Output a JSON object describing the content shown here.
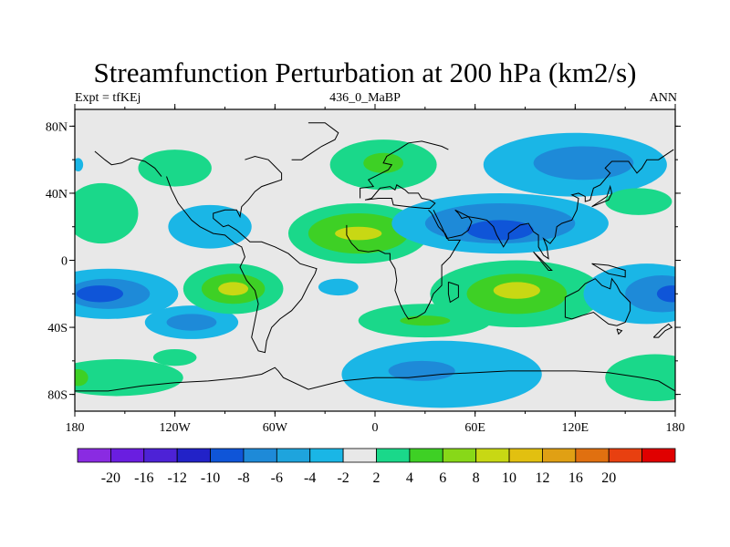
{
  "title": "Streamfunction Perturbation at 200 hPa (km2/s)",
  "subtitle_left": "Expt = tfKEj",
  "subtitle_center": "436_0_MaBP",
  "subtitle_right": "ANN",
  "map": {
    "lon_range": [
      -180,
      180
    ],
    "lat_range": [
      -90,
      90
    ],
    "y_ticks": [
      {
        "lat": 80,
        "label": "80N"
      },
      {
        "lat": 40,
        "label": "40N"
      },
      {
        "lat": 0,
        "label": "0"
      },
      {
        "lat": -40,
        "label": "40S"
      },
      {
        "lat": -80,
        "label": "80S"
      }
    ],
    "x_ticks": [
      {
        "lon": -180,
        "label": "180"
      },
      {
        "lon": -120,
        "label": "120W"
      },
      {
        "lon": -60,
        "label": "60W"
      },
      {
        "lon": 0,
        "label": "0"
      },
      {
        "lon": 60,
        "label": "60E"
      },
      {
        "lon": 120,
        "label": "120E"
      },
      {
        "lon": 180,
        "label": "180"
      }
    ],
    "background_color": "#e8e8e8",
    "fields": [
      {
        "lon": -120,
        "lat": 55,
        "rlon": 22,
        "rlat": 11,
        "level": 2
      },
      {
        "lon": 5,
        "lat": 57,
        "rlon": 32,
        "rlat": 15,
        "level": 2
      },
      {
        "lon": 5,
        "lat": 58,
        "rlon": 12,
        "rlat": 6,
        "level": 4
      },
      {
        "lon": 120,
        "lat": 57,
        "rlon": 55,
        "rlat": 19,
        "level": -2
      },
      {
        "lon": 125,
        "lat": 58,
        "rlon": 30,
        "rlat": 10,
        "level": -4
      },
      {
        "lon": 158,
        "lat": 35,
        "rlon": 20,
        "rlat": 8,
        "level": 2
      },
      {
        "lon": -99,
        "lat": 20,
        "rlon": 25,
        "rlat": 13,
        "level": -2
      },
      {
        "lon": -164,
        "lat": 28,
        "rlon": 22,
        "rlat": 18,
        "level": 2
      },
      {
        "lon": -178,
        "lat": 57,
        "rlon": 3,
        "rlat": 4,
        "level": -2
      },
      {
        "lon": -10,
        "lat": 16,
        "rlon": 42,
        "rlat": 18,
        "level": 2
      },
      {
        "lon": -10,
        "lat": 16,
        "rlon": 30,
        "rlat": 12,
        "level": 4
      },
      {
        "lon": -10,
        "lat": 16,
        "rlon": 14,
        "rlat": 4,
        "level": 6
      },
      {
        "lon": 75,
        "lat": 22,
        "rlon": 65,
        "rlat": 18,
        "level": -2
      },
      {
        "lon": 75,
        "lat": 22,
        "rlon": 45,
        "rlat": 12,
        "level": -4
      },
      {
        "lon": 75,
        "lat": 18,
        "rlon": 20,
        "rlat": 6,
        "level": -6
      },
      {
        "lon": -160,
        "lat": -20,
        "rlon": 42,
        "rlat": 15,
        "level": -2
      },
      {
        "lon": -160,
        "lat": -20,
        "rlon": 25,
        "rlat": 9,
        "level": -4
      },
      {
        "lon": -165,
        "lat": -20,
        "rlon": 14,
        "rlat": 5,
        "level": -6
      },
      {
        "lon": -110,
        "lat": -37,
        "rlon": 28,
        "rlat": 10,
        "level": -2
      },
      {
        "lon": -110,
        "lat": -37,
        "rlon": 15,
        "rlat": 5,
        "level": -4
      },
      {
        "lon": -85,
        "lat": -17,
        "rlon": 30,
        "rlat": 15,
        "level": 2
      },
      {
        "lon": -85,
        "lat": -17,
        "rlon": 19,
        "rlat": 9,
        "level": 4
      },
      {
        "lon": -85,
        "lat": -17,
        "rlon": 9,
        "rlat": 4,
        "level": 6
      },
      {
        "lon": -22,
        "lat": -16,
        "rlon": 12,
        "rlat": 5,
        "level": -2
      },
      {
        "lon": 85,
        "lat": -20,
        "rlon": 52,
        "rlat": 20,
        "level": 2
      },
      {
        "lon": 85,
        "lat": -20,
        "rlon": 30,
        "rlat": 12,
        "level": 4
      },
      {
        "lon": 85,
        "lat": -18,
        "rlon": 14,
        "rlat": 5,
        "level": 6
      },
      {
        "lon": 30,
        "lat": -36,
        "rlon": 40,
        "rlat": 10,
        "level": 2
      },
      {
        "lon": 30,
        "lat": -36,
        "rlon": 15,
        "rlat": 3,
        "level": 4
      },
      {
        "lon": 163,
        "lat": -20,
        "rlon": 38,
        "rlat": 18,
        "level": -2
      },
      {
        "lon": 172,
        "lat": -20,
        "rlon": 22,
        "rlat": 11,
        "level": -4
      },
      {
        "lon": 178,
        "lat": -20,
        "rlon": 9,
        "rlat": 5,
        "level": -6
      },
      {
        "lon": 40,
        "lat": -68,
        "rlon": 60,
        "rlat": 20,
        "level": -2
      },
      {
        "lon": 28,
        "lat": -66,
        "rlon": 20,
        "rlat": 6,
        "level": -4
      },
      {
        "lon": -155,
        "lat": -70,
        "rlon": 40,
        "rlat": 11,
        "level": 2
      },
      {
        "lon": -178,
        "lat": -70,
        "rlon": 6,
        "rlat": 5,
        "level": 4
      },
      {
        "lon": -120,
        "lat": -58,
        "rlon": 13,
        "rlat": 5,
        "level": 2
      },
      {
        "lon": 168,
        "lat": -70,
        "rlon": 30,
        "rlat": 14,
        "level": 2
      }
    ],
    "coastlines": [
      [
        [
          -125,
          50
        ],
        [
          -122,
          42
        ],
        [
          -118,
          34
        ],
        [
          -110,
          24
        ],
        [
          -105,
          20
        ],
        [
          -97,
          16
        ],
        [
          -90,
          15
        ],
        [
          -84,
          10
        ],
        [
          -80,
          8
        ],
        [
          -78,
          2
        ],
        [
          -81,
          -4
        ],
        [
          -77,
          -12
        ],
        [
          -72,
          -18
        ],
        [
          -70,
          -26
        ],
        [
          -72,
          -36
        ],
        [
          -74,
          -46
        ],
        [
          -70,
          -54
        ],
        [
          -66,
          -55
        ],
        [
          -65,
          -48
        ],
        [
          -62,
          -40
        ],
        [
          -57,
          -35
        ],
        [
          -50,
          -30
        ],
        [
          -44,
          -23
        ],
        [
          -40,
          -15
        ],
        [
          -36,
          -8
        ],
        [
          -35,
          -5
        ],
        [
          -45,
          -2
        ],
        [
          -52,
          4
        ],
        [
          -60,
          8
        ],
        [
          -68,
          11
        ],
        [
          -75,
          11
        ],
        [
          -83,
          18
        ],
        [
          -88,
          21
        ],
        [
          -91,
          20
        ],
        [
          -97,
          25
        ],
        [
          -97,
          28
        ],
        [
          -90,
          30
        ],
        [
          -83,
          30
        ],
        [
          -81,
          26
        ],
        [
          -80,
          32
        ],
        [
          -76,
          36
        ],
        [
          -72,
          41
        ],
        [
          -68,
          44
        ],
        [
          -62,
          46
        ],
        [
          -56,
          48
        ],
        [
          -56,
          52
        ],
        [
          -60,
          56
        ],
        [
          -64,
          60
        ],
        [
          -72,
          62
        ],
        [
          -78,
          60
        ]
      ],
      [
        [
          -50,
          60
        ],
        [
          -44,
          60
        ],
        [
          -38,
          64
        ],
        [
          -32,
          68
        ],
        [
          -24,
          72
        ],
        [
          -22,
          76
        ],
        [
          -30,
          82
        ],
        [
          -40,
          82
        ]
      ],
      [
        [
          -9,
          37
        ],
        [
          -9,
          43
        ],
        [
          -1,
          44
        ],
        [
          -4,
          48
        ],
        [
          2,
          51
        ],
        [
          8,
          54
        ],
        [
          10,
          57
        ],
        [
          5,
          58
        ],
        [
          7,
          62
        ],
        [
          14,
          66
        ],
        [
          20,
          70
        ],
        [
          28,
          71
        ],
        [
          40,
          68
        ],
        [
          44,
          66
        ]
      ],
      [
        [
          -6,
          36
        ],
        [
          2,
          37
        ],
        [
          10,
          37
        ],
        [
          11,
          33
        ],
        [
          20,
          32
        ],
        [
          30,
          31
        ],
        [
          33,
          31
        ],
        [
          36,
          34
        ],
        [
          33,
          36
        ],
        [
          28,
          37
        ],
        [
          26,
          40
        ],
        [
          20,
          40
        ],
        [
          18,
          42
        ],
        [
          13,
          45
        ],
        [
          12,
          42
        ],
        [
          9,
          44
        ],
        [
          3,
          43
        ],
        [
          -2,
          37
        ],
        [
          -6,
          36
        ]
      ],
      [
        [
          -17,
          21
        ],
        [
          -17,
          15
        ],
        [
          -14,
          10
        ],
        [
          -10,
          6
        ],
        [
          -4,
          5
        ],
        [
          2,
          6
        ],
        [
          6,
          4
        ],
        [
          9,
          4
        ],
        [
          9,
          0
        ],
        [
          12,
          -5
        ],
        [
          13,
          -12
        ],
        [
          12,
          -18
        ],
        [
          15,
          -26
        ],
        [
          18,
          -32
        ],
        [
          20,
          -35
        ],
        [
          25,
          -34
        ],
        [
          30,
          -31
        ],
        [
          33,
          -25
        ],
        [
          35,
          -20
        ],
        [
          40,
          -15
        ],
        [
          40,
          -10
        ],
        [
          40,
          -3
        ],
        [
          45,
          2
        ],
        [
          51,
          12
        ],
        [
          44,
          12
        ],
        [
          42,
          16
        ],
        [
          38,
          20
        ],
        [
          34,
          28
        ],
        [
          32,
          30
        ]
      ],
      [
        [
          44,
          -13
        ],
        [
          50,
          -15
        ],
        [
          50,
          -22
        ],
        [
          45,
          -25
        ],
        [
          44,
          -20
        ],
        [
          44,
          -13
        ]
      ],
      [
        [
          35,
          30
        ],
        [
          40,
          20
        ],
        [
          43,
          13
        ],
        [
          52,
          15
        ],
        [
          56,
          18
        ],
        [
          58,
          23
        ],
        [
          56,
          26
        ],
        [
          52,
          25
        ],
        [
          50,
          28
        ],
        [
          48,
          30
        ],
        [
          56,
          26
        ],
        [
          62,
          25
        ],
        [
          67,
          24
        ],
        [
          71,
          20
        ],
        [
          73,
          15
        ],
        [
          77,
          8
        ],
        [
          80,
          13
        ],
        [
          80,
          16
        ],
        [
          87,
          21
        ],
        [
          92,
          22
        ],
        [
          95,
          17
        ],
        [
          98,
          15
        ],
        [
          98,
          8
        ],
        [
          101,
          3
        ],
        [
          104,
          1
        ],
        [
          103,
          8
        ],
        [
          101,
          13
        ],
        [
          105,
          10
        ],
        [
          108,
          14
        ],
        [
          109,
          20
        ],
        [
          112,
          22
        ],
        [
          118,
          24
        ],
        [
          121,
          30
        ],
        [
          122,
          37
        ],
        [
          118,
          39
        ],
        [
          122,
          40
        ],
        [
          126,
          38
        ],
        [
          126,
          35
        ],
        [
          129,
          36
        ],
        [
          131,
          43
        ],
        [
          135,
          45
        ],
        [
          141,
          52
        ],
        [
          138,
          55
        ],
        [
          142,
          59
        ],
        [
          152,
          59
        ],
        [
          157,
          52
        ],
        [
          160,
          55
        ],
        [
          163,
          60
        ],
        [
          170,
          60
        ],
        [
          179,
          66
        ]
      ],
      [
        [
          95,
          5
        ],
        [
          100,
          0
        ],
        [
          106,
          -6
        ],
        [
          104,
          -6
        ],
        [
          95,
          5
        ]
      ],
      [
        [
          130,
          -2
        ],
        [
          140,
          -3
        ],
        [
          150,
          -6
        ],
        [
          150,
          -10
        ],
        [
          140,
          -8
        ],
        [
          130,
          -2
        ]
      ],
      [
        [
          114,
          -22
        ],
        [
          114,
          -34
        ],
        [
          118,
          -35
        ],
        [
          124,
          -33
        ],
        [
          131,
          -31
        ],
        [
          136,
          -35
        ],
        [
          140,
          -38
        ],
        [
          145,
          -39
        ],
        [
          150,
          -37
        ],
        [
          153,
          -30
        ],
        [
          153,
          -25
        ],
        [
          147,
          -19
        ],
        [
          145,
          -15
        ],
        [
          142,
          -11
        ],
        [
          141,
          -17
        ],
        [
          136,
          -15
        ],
        [
          132,
          -11
        ],
        [
          126,
          -14
        ],
        [
          122,
          -18
        ],
        [
          114,
          -22
        ]
      ],
      [
        [
          145,
          -41
        ],
        [
          148,
          -42
        ],
        [
          146,
          -44
        ],
        [
          145,
          -41
        ]
      ],
      [
        [
          167,
          -46
        ],
        [
          172,
          -41
        ],
        [
          176,
          -38
        ],
        [
          178,
          -40
        ],
        [
          174,
          -42
        ],
        [
          170,
          -46
        ],
        [
          167,
          -46
        ]
      ],
      [
        [
          130,
          32
        ],
        [
          135,
          34
        ],
        [
          140,
          36
        ],
        [
          142,
          40
        ],
        [
          141,
          44
        ],
        [
          139,
          38
        ],
        [
          133,
          34
        ],
        [
          130,
          32
        ]
      ],
      [
        [
          -168,
          65
        ],
        [
          -162,
          60
        ],
        [
          -158,
          57
        ],
        [
          -152,
          58
        ],
        [
          -146,
          61
        ],
        [
          -138,
          59
        ],
        [
          -132,
          55
        ],
        [
          -128,
          50
        ]
      ],
      [
        [
          -180,
          -78
        ],
        [
          -160,
          -78
        ],
        [
          -140,
          -75
        ],
        [
          -120,
          -73
        ],
        [
          -100,
          -72
        ],
        [
          -80,
          -70
        ],
        [
          -68,
          -68
        ],
        [
          -60,
          -64
        ],
        [
          -58,
          -66
        ],
        [
          -55,
          -70
        ],
        [
          -40,
          -77
        ],
        [
          -20,
          -72
        ],
        [
          0,
          -70
        ],
        [
          20,
          -70
        ],
        [
          40,
          -68
        ],
        [
          60,
          -67
        ],
        [
          80,
          -66
        ],
        [
          100,
          -66
        ],
        [
          120,
          -66
        ],
        [
          140,
          -67
        ],
        [
          160,
          -70
        ],
        [
          170,
          -72
        ],
        [
          180,
          -78
        ]
      ]
    ]
  },
  "colorbar": {
    "colors": [
      "#8a2be2",
      "#6a1ee0",
      "#4d22d6",
      "#2222c8",
      "#0f55d8",
      "#1e8ad8",
      "#1ea4dd",
      "#1ab6e6",
      "#e8e8e8",
      "#1ad88a",
      "#3ed025",
      "#88d818",
      "#c8d814",
      "#e2c010",
      "#e0a014",
      "#e07010",
      "#e84010",
      "#e00000"
    ],
    "labels": [
      "-20",
      "-16",
      "-12",
      "-10",
      "-8",
      "-6",
      "-4",
      "-2",
      "2",
      "4",
      "6",
      "8",
      "10",
      "12",
      "16",
      "20"
    ]
  }
}
